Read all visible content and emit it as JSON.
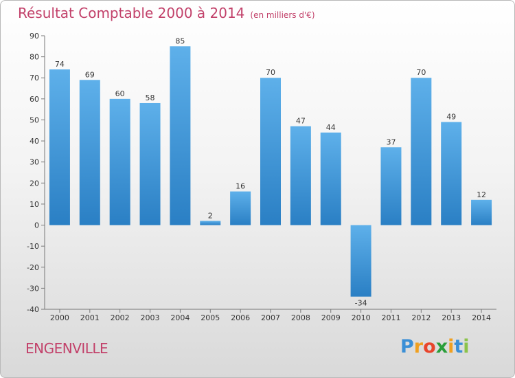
{
  "title": "Résultat Comptable 2000 à 2014",
  "subtitle": "(en milliers d'€)",
  "commune": "ENGENVILLE",
  "logo": {
    "text": "Proxiti",
    "letters": [
      "P",
      "r",
      "o",
      "x",
      "i",
      "t",
      "i"
    ],
    "colors": [
      "#3a8fd6",
      "#f0a020",
      "#e8452c",
      "#2a9e3a",
      "#f0a020",
      "#3a8fd6",
      "#8bc34a"
    ]
  },
  "colors": {
    "bar_top": "#5eb0ea",
    "bar_bottom": "#2a7fc4",
    "title": "#c2416a"
  },
  "chart_data": {
    "type": "bar",
    "title": "Résultat Comptable 2000 à 2014",
    "subtitle": "(en milliers d'€)",
    "categories": [
      "2000",
      "2001",
      "2002",
      "2003",
      "2004",
      "2005",
      "2006",
      "2007",
      "2008",
      "2009",
      "2010",
      "2011",
      "2012",
      "2013",
      "2014"
    ],
    "values": [
      74,
      69,
      60,
      58,
      85,
      2,
      16,
      70,
      47,
      44,
      -34,
      37,
      70,
      49,
      12
    ],
    "ylim": [
      -40,
      90
    ],
    "yticks": [
      90,
      80,
      70,
      60,
      50,
      40,
      30,
      20,
      10,
      0,
      -10,
      -20,
      -30,
      -40
    ],
    "grid": false,
    "legend": "none"
  }
}
